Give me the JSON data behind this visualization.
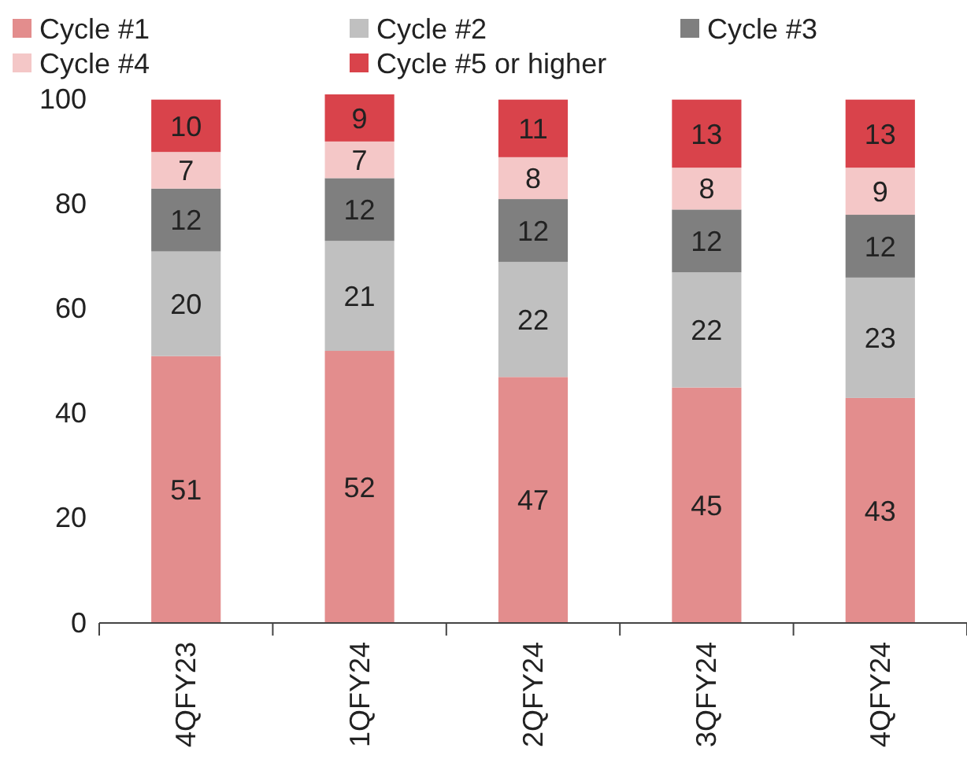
{
  "chart_data": {
    "type": "bar",
    "stacked": true,
    "data_labels": true,
    "legend": "top",
    "grid": false,
    "categories": [
      "4QFY23",
      "1QFY24",
      "2QFY24",
      "3QFY24",
      "4QFY24"
    ],
    "ylim": [
      0,
      101
    ],
    "yticks": [
      0,
      20,
      40,
      60,
      80,
      100
    ],
    "series": [
      {
        "name": "Cycle #1",
        "color": "#e38d8d",
        "values": [
          51,
          52,
          47,
          45,
          43
        ]
      },
      {
        "name": "Cycle #2",
        "color": "#c0c0c0",
        "values": [
          20,
          21,
          22,
          22,
          23
        ]
      },
      {
        "name": "Cycle #3",
        "color": "#7f7f7f",
        "values": [
          12,
          12,
          12,
          12,
          12
        ]
      },
      {
        "name": "Cycle #4",
        "color": "#f4c7c7",
        "values": [
          7,
          7,
          8,
          8,
          9
        ]
      },
      {
        "name": "Cycle #5 or higher",
        "color": "#d9434b",
        "values": [
          10,
          9,
          11,
          13,
          13
        ]
      }
    ]
  }
}
